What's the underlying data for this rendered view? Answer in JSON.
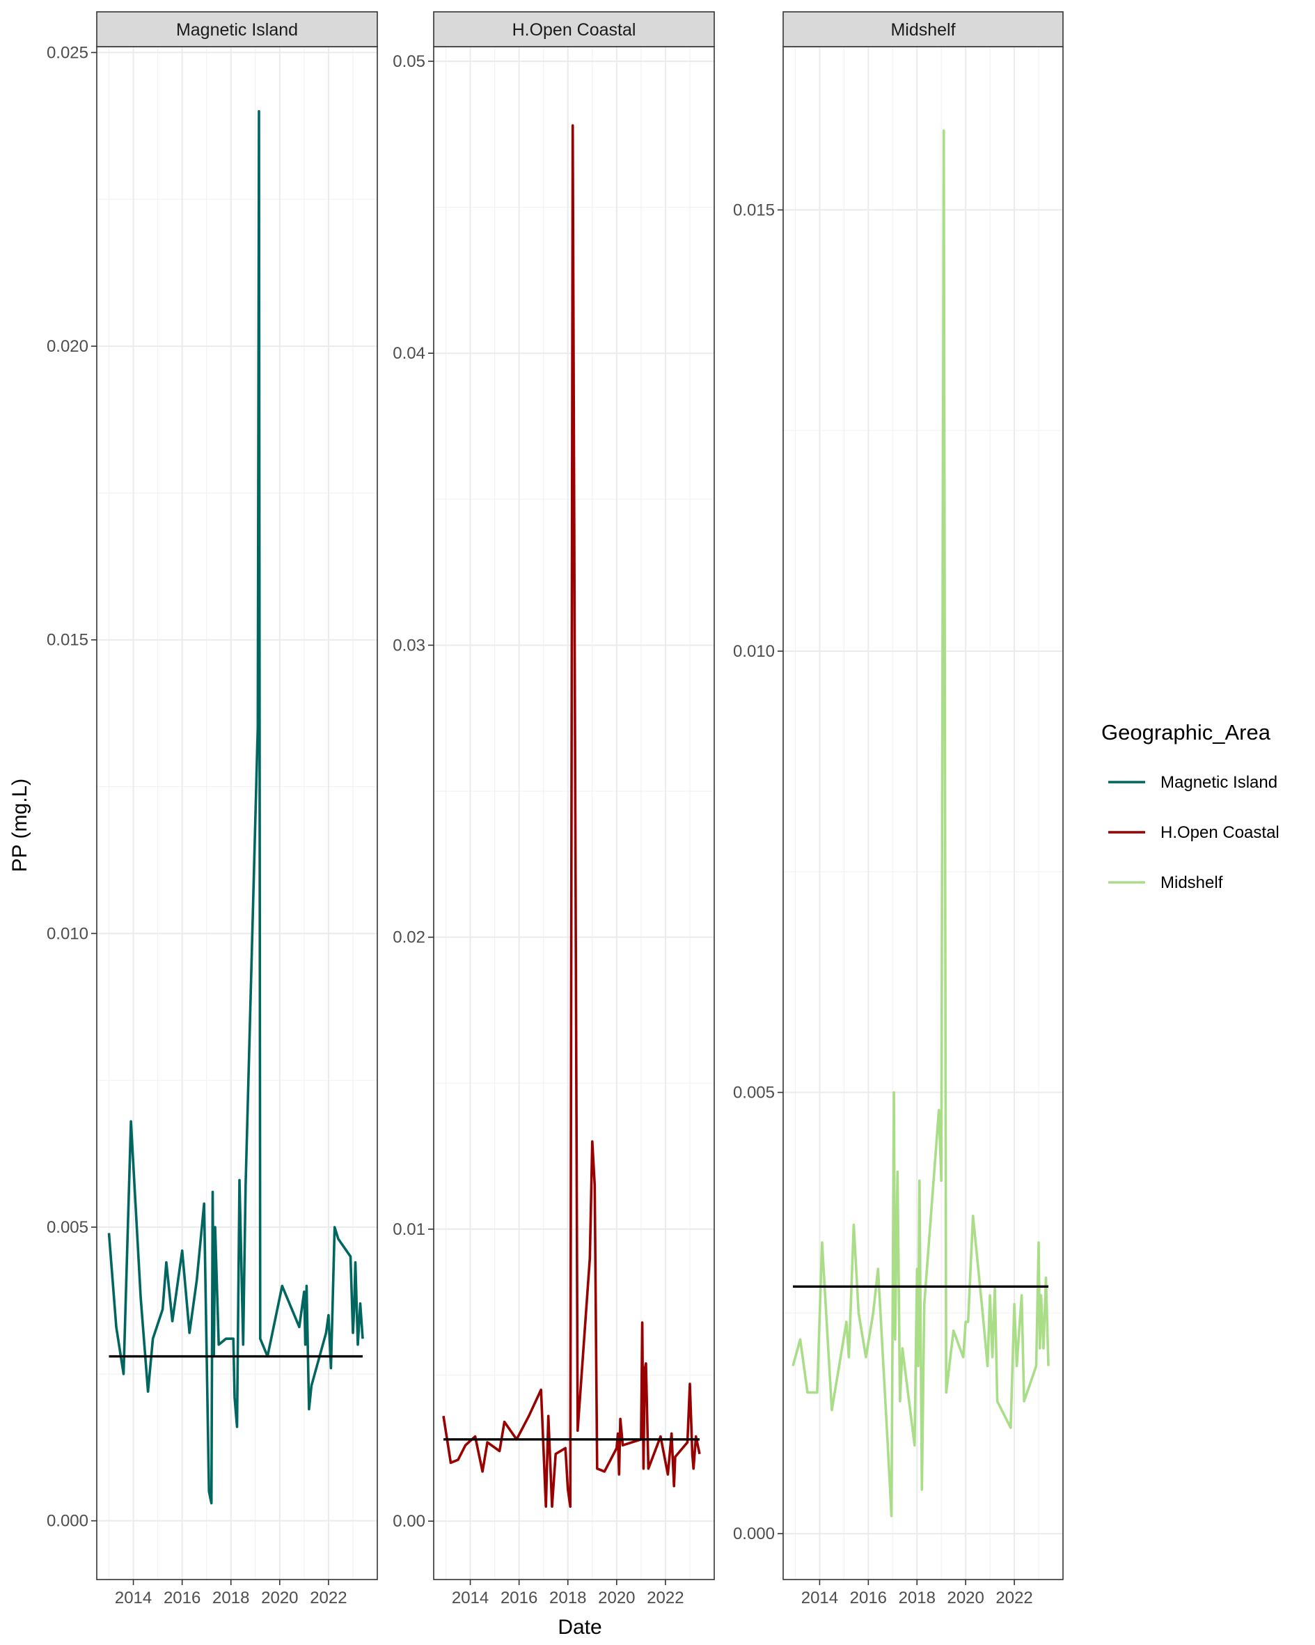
{
  "chart_data": {
    "type": "line",
    "facet_by": "Geographic_Area",
    "xlabel": "Date",
    "ylabel": "PP (mg.L)",
    "xlim": [
      2012.5,
      2024.0
    ],
    "x_ticks": [
      2014,
      2016,
      2018,
      2020,
      2022
    ],
    "x_tick_labels": [
      "2014",
      "2016",
      "2018",
      "2020",
      "2022"
    ],
    "grid": true,
    "legend": {
      "title": "Geographic_Area",
      "position": "right",
      "entries": [
        "Magnetic Island",
        "H.Open Coastal",
        "Midshelf"
      ]
    },
    "panels": [
      {
        "name": "Magnetic Island",
        "color": "#006660",
        "ylim": [
          -0.001,
          0.0251
        ],
        "y_ticks": [
          0.0,
          0.005,
          0.01,
          0.015,
          0.02,
          0.025
        ],
        "y_tick_labels": [
          "0.000",
          "0.005",
          "0.010",
          "0.015",
          "0.020",
          "0.025"
        ],
        "reference_line": 0.0028,
        "series": [
          {
            "x": 2013.0,
            "y": 0.0049
          },
          {
            "x": 2013.3,
            "y": 0.0033
          },
          {
            "x": 2013.6,
            "y": 0.0025
          },
          {
            "x": 2013.9,
            "y": 0.0068
          },
          {
            "x": 2014.3,
            "y": 0.0038
          },
          {
            "x": 2014.6,
            "y": 0.0022
          },
          {
            "x": 2014.8,
            "y": 0.0031
          },
          {
            "x": 2015.2,
            "y": 0.0036
          },
          {
            "x": 2015.35,
            "y": 0.0044
          },
          {
            "x": 2015.6,
            "y": 0.0034
          },
          {
            "x": 2016.0,
            "y": 0.0046
          },
          {
            "x": 2016.3,
            "y": 0.0032
          },
          {
            "x": 2016.6,
            "y": 0.0041
          },
          {
            "x": 2016.9,
            "y": 0.0054
          },
          {
            "x": 2017.1,
            "y": 0.0005
          },
          {
            "x": 2017.2,
            "y": 0.0003
          },
          {
            "x": 2017.25,
            "y": 0.0056
          },
          {
            "x": 2017.3,
            "y": 0.0028
          },
          {
            "x": 2017.35,
            "y": 0.005
          },
          {
            "x": 2017.5,
            "y": 0.003
          },
          {
            "x": 2017.8,
            "y": 0.0031
          },
          {
            "x": 2018.1,
            "y": 0.0031
          },
          {
            "x": 2018.15,
            "y": 0.0021
          },
          {
            "x": 2018.25,
            "y": 0.0016
          },
          {
            "x": 2018.35,
            "y": 0.0058
          },
          {
            "x": 2018.5,
            "y": 0.003
          },
          {
            "x": 2018.6,
            "y": 0.0057
          },
          {
            "x": 2019.1,
            "y": 0.0135
          },
          {
            "x": 2019.15,
            "y": 0.024
          },
          {
            "x": 2019.2,
            "y": 0.0031
          },
          {
            "x": 2019.5,
            "y": 0.0028
          },
          {
            "x": 2020.1,
            "y": 0.004
          },
          {
            "x": 2020.8,
            "y": 0.0033
          },
          {
            "x": 2021.0,
            "y": 0.0039
          },
          {
            "x": 2021.05,
            "y": 0.003
          },
          {
            "x": 2021.1,
            "y": 0.004
          },
          {
            "x": 2021.2,
            "y": 0.0019
          },
          {
            "x": 2021.3,
            "y": 0.0023
          },
          {
            "x": 2021.9,
            "y": 0.0032
          },
          {
            "x": 2022.0,
            "y": 0.0035
          },
          {
            "x": 2022.1,
            "y": 0.0026
          },
          {
            "x": 2022.25,
            "y": 0.005
          },
          {
            "x": 2022.4,
            "y": 0.0048
          },
          {
            "x": 2022.9,
            "y": 0.0045
          },
          {
            "x": 2023.0,
            "y": 0.0032
          },
          {
            "x": 2023.05,
            "y": 0.0036
          },
          {
            "x": 2023.1,
            "y": 0.0044
          },
          {
            "x": 2023.2,
            "y": 0.003
          },
          {
            "x": 2023.3,
            "y": 0.0037
          },
          {
            "x": 2023.4,
            "y": 0.0031
          }
        ]
      },
      {
        "name": "H.Open Coastal",
        "color": "#990000",
        "ylim": [
          -0.002,
          0.0505
        ],
        "y_ticks": [
          0.0,
          0.01,
          0.02,
          0.03,
          0.04,
          0.05
        ],
        "y_tick_labels": [
          "0.00",
          "0.01",
          "0.02",
          "0.03",
          "0.04",
          "0.05"
        ],
        "reference_line": 0.0028,
        "series": [
          {
            "x": 2012.9,
            "y": 0.0036
          },
          {
            "x": 2013.2,
            "y": 0.002
          },
          {
            "x": 2013.5,
            "y": 0.0021
          },
          {
            "x": 2013.8,
            "y": 0.0026
          },
          {
            "x": 2014.2,
            "y": 0.0029
          },
          {
            "x": 2014.5,
            "y": 0.0017
          },
          {
            "x": 2014.7,
            "y": 0.0027
          },
          {
            "x": 2015.2,
            "y": 0.0024
          },
          {
            "x": 2015.4,
            "y": 0.0034
          },
          {
            "x": 2015.9,
            "y": 0.0028
          },
          {
            "x": 2016.4,
            "y": 0.0036
          },
          {
            "x": 2016.9,
            "y": 0.0045
          },
          {
            "x": 2017.1,
            "y": 0.0005
          },
          {
            "x": 2017.2,
            "y": 0.0036
          },
          {
            "x": 2017.35,
            "y": 0.0005
          },
          {
            "x": 2017.5,
            "y": 0.0023
          },
          {
            "x": 2017.9,
            "y": 0.0025
          },
          {
            "x": 2018.0,
            "y": 0.0011
          },
          {
            "x": 2018.1,
            "y": 0.0005
          },
          {
            "x": 2018.2,
            "y": 0.0478
          },
          {
            "x": 2018.4,
            "y": 0.0031
          },
          {
            "x": 2018.9,
            "y": 0.009
          },
          {
            "x": 2019.0,
            "y": 0.013
          },
          {
            "x": 2019.1,
            "y": 0.0115
          },
          {
            "x": 2019.2,
            "y": 0.0018
          },
          {
            "x": 2019.5,
            "y": 0.0017
          },
          {
            "x": 2020.0,
            "y": 0.0025
          },
          {
            "x": 2020.05,
            "y": 0.003
          },
          {
            "x": 2020.1,
            "y": 0.0016
          },
          {
            "x": 2020.15,
            "y": 0.0035
          },
          {
            "x": 2020.25,
            "y": 0.0026
          },
          {
            "x": 2021.0,
            "y": 0.0028
          },
          {
            "x": 2021.05,
            "y": 0.0068
          },
          {
            "x": 2021.1,
            "y": 0.0018
          },
          {
            "x": 2021.15,
            "y": 0.0052
          },
          {
            "x": 2021.2,
            "y": 0.0054
          },
          {
            "x": 2021.3,
            "y": 0.0018
          },
          {
            "x": 2021.8,
            "y": 0.0029
          },
          {
            "x": 2022.1,
            "y": 0.0016
          },
          {
            "x": 2022.25,
            "y": 0.003
          },
          {
            "x": 2022.35,
            "y": 0.0012
          },
          {
            "x": 2022.4,
            "y": 0.0022
          },
          {
            "x": 2022.9,
            "y": 0.0027
          },
          {
            "x": 2023.0,
            "y": 0.0047
          },
          {
            "x": 2023.1,
            "y": 0.0023
          },
          {
            "x": 2023.15,
            "y": 0.0018
          },
          {
            "x": 2023.25,
            "y": 0.0029
          },
          {
            "x": 2023.4,
            "y": 0.0023
          }
        ]
      },
      {
        "name": "Midshelf",
        "color": "#aadd88",
        "ylim": [
          -0.00052,
          0.01685
        ],
        "y_ticks": [
          0.0,
          0.005,
          0.01,
          0.015
        ],
        "y_tick_labels": [
          "0.000",
          "0.005",
          "0.010",
          "0.015"
        ],
        "reference_line": 0.0028,
        "series": [
          {
            "x": 2012.9,
            "y": 0.0019
          },
          {
            "x": 2013.2,
            "y": 0.0022
          },
          {
            "x": 2013.5,
            "y": 0.0016
          },
          {
            "x": 2013.9,
            "y": 0.0016
          },
          {
            "x": 2014.1,
            "y": 0.0033
          },
          {
            "x": 2014.5,
            "y": 0.0014
          },
          {
            "x": 2014.8,
            "y": 0.0019
          },
          {
            "x": 2015.1,
            "y": 0.0024
          },
          {
            "x": 2015.2,
            "y": 0.002
          },
          {
            "x": 2015.4,
            "y": 0.0035
          },
          {
            "x": 2015.6,
            "y": 0.0025
          },
          {
            "x": 2015.9,
            "y": 0.002
          },
          {
            "x": 2016.2,
            "y": 0.0025
          },
          {
            "x": 2016.4,
            "y": 0.003
          },
          {
            "x": 2016.8,
            "y": 0.001
          },
          {
            "x": 2016.95,
            "y": 0.0002
          },
          {
            "x": 2017.05,
            "y": 0.005
          },
          {
            "x": 2017.1,
            "y": 0.0022
          },
          {
            "x": 2017.2,
            "y": 0.0041
          },
          {
            "x": 2017.3,
            "y": 0.0015
          },
          {
            "x": 2017.4,
            "y": 0.0021
          },
          {
            "x": 2017.9,
            "y": 0.001
          },
          {
            "x": 2018.0,
            "y": 0.003
          },
          {
            "x": 2018.05,
            "y": 0.0019
          },
          {
            "x": 2018.1,
            "y": 0.004
          },
          {
            "x": 2018.2,
            "y": 0.0005
          },
          {
            "x": 2018.3,
            "y": 0.0026
          },
          {
            "x": 2018.9,
            "y": 0.0048
          },
          {
            "x": 2019.0,
            "y": 0.004
          },
          {
            "x": 2019.1,
            "y": 0.0159
          },
          {
            "x": 2019.2,
            "y": 0.0016
          },
          {
            "x": 2019.5,
            "y": 0.0023
          },
          {
            "x": 2019.9,
            "y": 0.002
          },
          {
            "x": 2020.0,
            "y": 0.0024
          },
          {
            "x": 2020.1,
            "y": 0.0024
          },
          {
            "x": 2020.3,
            "y": 0.0036
          },
          {
            "x": 2020.7,
            "y": 0.0025
          },
          {
            "x": 2020.9,
            "y": 0.0019
          },
          {
            "x": 2021.0,
            "y": 0.0027
          },
          {
            "x": 2021.1,
            "y": 0.002
          },
          {
            "x": 2021.2,
            "y": 0.0028
          },
          {
            "x": 2021.3,
            "y": 0.0015
          },
          {
            "x": 2021.85,
            "y": 0.0012
          },
          {
            "x": 2022.0,
            "y": 0.0026
          },
          {
            "x": 2022.1,
            "y": 0.0019
          },
          {
            "x": 2022.15,
            "y": 0.0021
          },
          {
            "x": 2022.3,
            "y": 0.0027
          },
          {
            "x": 2022.4,
            "y": 0.0015
          },
          {
            "x": 2022.9,
            "y": 0.0019
          },
          {
            "x": 2023.0,
            "y": 0.0033
          },
          {
            "x": 2023.05,
            "y": 0.0021
          },
          {
            "x": 2023.1,
            "y": 0.0027
          },
          {
            "x": 2023.2,
            "y": 0.0021
          },
          {
            "x": 2023.3,
            "y": 0.0029
          },
          {
            "x": 2023.4,
            "y": 0.0019
          }
        ]
      }
    ]
  }
}
